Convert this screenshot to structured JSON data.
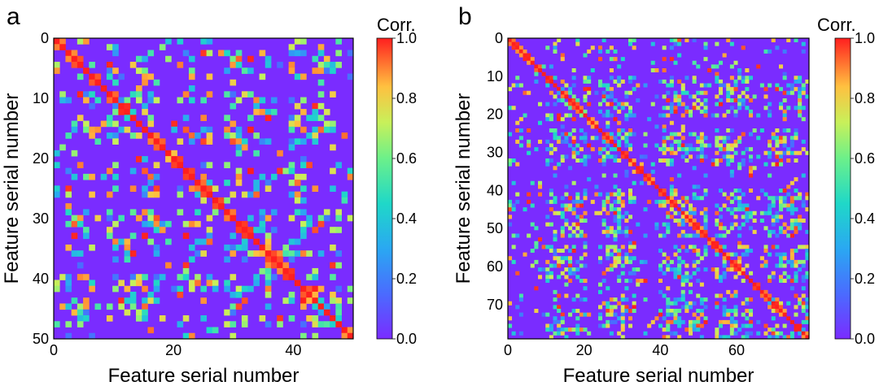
{
  "figure": {
    "colors": {
      "min": "#7a2cff",
      "max": "#ff1f1f",
      "background": "#ffffff",
      "axis": "#000000"
    }
  },
  "chart_data": [
    {
      "type": "heatmap",
      "panel_label": "a",
      "n": 51,
      "seed": 11,
      "xlabel": "Feature serial number",
      "ylabel": "Feature serial number",
      "xticks": [
        0,
        20,
        40
      ],
      "yticks": [
        0,
        10,
        20,
        30,
        40,
        50
      ],
      "xlim": [
        0,
        50
      ],
      "ylim": [
        0,
        50
      ],
      "colorbar": {
        "title": "Corr.",
        "ticks": [
          "0.0",
          "0.2",
          "0.4",
          "0.6",
          "0.8",
          "1.0"
        ],
        "range": [
          0.0,
          1.0
        ],
        "colormap": "rainbow"
      },
      "diagonal_value": 1.0,
      "off_diagonal_baseline": 0.0,
      "cluster_blocks": [
        [
          2,
          6
        ],
        [
          9,
          17
        ],
        [
          21,
          26
        ],
        [
          29,
          36
        ],
        [
          40,
          48
        ]
      ]
    },
    {
      "type": "heatmap",
      "panel_label": "b",
      "n": 80,
      "seed": 23,
      "xlabel": "Feature serial number",
      "ylabel": "Feature serial number",
      "xticks": [
        0,
        20,
        40,
        60
      ],
      "yticks": [
        0,
        10,
        20,
        30,
        40,
        50,
        60,
        70
      ],
      "xlim": [
        0,
        79
      ],
      "ylim": [
        0,
        79
      ],
      "colorbar": {
        "title": "Corr.",
        "ticks": [
          "0.0",
          "0.2",
          "0.4",
          "0.6",
          "0.8",
          "1.0"
        ],
        "range": [
          0.0,
          1.0
        ],
        "colormap": "rainbow"
      },
      "diagonal_value": 1.0,
      "off_diagonal_baseline": 0.0,
      "cluster_blocks": [
        [
          10,
          20
        ],
        [
          24,
          33
        ],
        [
          40,
          52
        ],
        [
          55,
          64
        ],
        [
          68,
          79
        ]
      ]
    }
  ]
}
